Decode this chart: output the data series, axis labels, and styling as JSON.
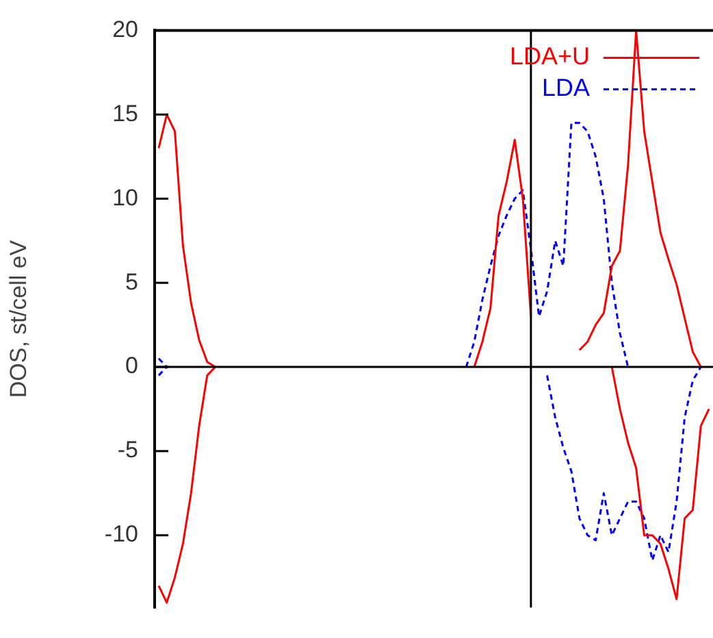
{
  "chart_data": {
    "type": "line",
    "ylabel": "DOS, st/cell eV",
    "categories": [
      null,
      null,
      null,
      null,
      null,
      null,
      null,
      null,
      null,
      null,
      null,
      null,
      null,
      null,
      null,
      null,
      null,
      null,
      null,
      null,
      null,
      null,
      null,
      null,
      null,
      null,
      null,
      null,
      null,
      null,
      null,
      null,
      null,
      null,
      null,
      null,
      null,
      null,
      null,
      null,
      null,
      null,
      null,
      null,
      null,
      null,
      null,
      null,
      null,
      null,
      null,
      null,
      null,
      null,
      null,
      null,
      null,
      null,
      null,
      null,
      null,
      null,
      null,
      null,
      null,
      null,
      null,
      null,
      null
    ],
    "ylim": [
      -14.3,
      20
    ],
    "yticks": [
      -10,
      -5,
      0,
      5,
      10,
      15,
      20
    ],
    "grid": false,
    "legend": "top right",
    "marker": "none",
    "ref_lines": [
      {
        "axis": "y",
        "value": 0,
        "color": "#000000"
      }
    ],
    "series": [
      {
        "name": "LDA+U",
        "color": "#ff0000",
        "line_style": "solid",
        "values": [
          13,
          15,
          14,
          7.2,
          3.8,
          1.6,
          0.3,
          0,
          null,
          null,
          null,
          null,
          null,
          null,
          null,
          null,
          null,
          null,
          null,
          null,
          null,
          null,
          null,
          null,
          null,
          null,
          null,
          null,
          null,
          null,
          null,
          null,
          null,
          null,
          null,
          null,
          null,
          null,
          null,
          0,
          1.5,
          3.5,
          9,
          11,
          13.5,
          10,
          3,
          null,
          null,
          null,
          null,
          null,
          1,
          1.5,
          2.5,
          3.2,
          6,
          6.9,
          12,
          20,
          14,
          11,
          8,
          6.4,
          4.9,
          2.9,
          0.9,
          0,
          null
        ]
      },
      {
        "color": "#ff0000",
        "line_style": "solid",
        "values": [
          -13,
          -14,
          -12.5,
          -10.5,
          -7.5,
          -3.5,
          -0.5,
          0,
          null,
          null,
          null,
          null,
          null,
          null,
          null,
          null,
          null,
          null,
          null,
          null,
          null,
          null,
          null,
          null,
          null,
          null,
          null,
          null,
          null,
          null,
          null,
          null,
          null,
          null,
          null,
          null,
          null,
          null,
          null,
          null,
          null,
          null,
          null,
          null,
          null,
          null,
          null,
          null,
          null,
          null,
          null,
          null,
          null,
          null,
          null,
          null,
          0,
          -2.5,
          -4.5,
          -6,
          -10,
          -10,
          -10.5,
          -12,
          -13.8,
          -9,
          -8.5,
          -3.5,
          -2.5
        ]
      },
      {
        "name": "LDA",
        "color": "#0000ff",
        "line_style": "dashed",
        "values": [
          0.5,
          0,
          null,
          null,
          null,
          null,
          null,
          null,
          null,
          null,
          null,
          null,
          null,
          null,
          null,
          null,
          null,
          null,
          null,
          null,
          null,
          null,
          null,
          null,
          null,
          null,
          null,
          null,
          null,
          null,
          null,
          null,
          null,
          null,
          null,
          null,
          null,
          null,
          0,
          1.5,
          4,
          6,
          7.8,
          9,
          10,
          10.5,
          7,
          3,
          4.5,
          7.5,
          6,
          14.5,
          14.5,
          14,
          12.5,
          10,
          5,
          2,
          0,
          null,
          null,
          null,
          null,
          null,
          null,
          null,
          null,
          null,
          null
        ]
      },
      {
        "color": "#0000ff",
        "line_style": "dashed",
        "values": [
          -0.5,
          0,
          null,
          null,
          null,
          null,
          null,
          null,
          null,
          null,
          null,
          null,
          null,
          null,
          null,
          null,
          null,
          null,
          null,
          null,
          null,
          null,
          null,
          null,
          null,
          null,
          null,
          null,
          null,
          null,
          null,
          null,
          null,
          null,
          null,
          null,
          null,
          null,
          null,
          null,
          null,
          null,
          null,
          null,
          null,
          null,
          null,
          null,
          -0.5,
          -3,
          -4.8,
          -6.2,
          -9,
          -10,
          -10.3,
          -7.5,
          -10,
          -9,
          -8,
          -8,
          -9,
          -11.5,
          -10,
          -11,
          -8,
          -3,
          -0.8,
          0,
          null
        ]
      }
    ]
  }
}
